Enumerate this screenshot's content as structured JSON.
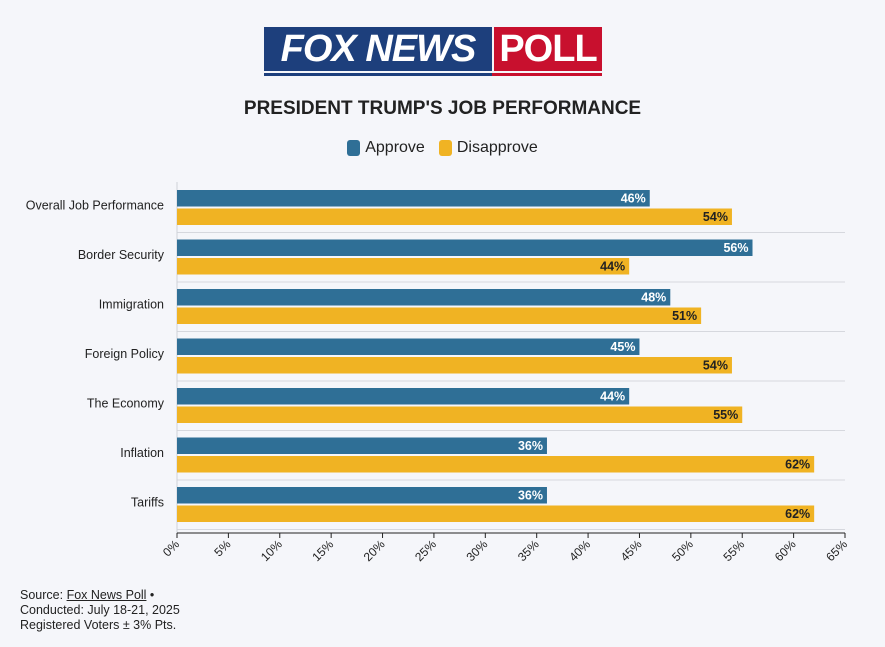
{
  "logo": {
    "left": "FOX NEWS",
    "right": "POLL"
  },
  "chart_data": {
    "type": "bar",
    "orientation": "horizontal",
    "title": "PRESIDENT TRUMP'S JOB PERFORMANCE",
    "categories": [
      "Overall Job Performance",
      "Border Security",
      "Immigration",
      "Foreign Policy",
      "The Economy",
      "Inflation",
      "Tariffs"
    ],
    "series": [
      {
        "name": "Approve",
        "color": "#2f6f96",
        "values": [
          46,
          56,
          48,
          45,
          44,
          36,
          36
        ]
      },
      {
        "name": "Disapprove",
        "color": "#f0b323",
        "values": [
          54,
          44,
          51,
          54,
          55,
          62,
          62
        ]
      }
    ],
    "xlim": [
      0,
      65
    ],
    "xticks": [
      0,
      5,
      10,
      15,
      20,
      25,
      30,
      35,
      40,
      45,
      50,
      55,
      60,
      65
    ],
    "tick_suffix": "%",
    "legend_position": "top-center",
    "grid": true
  },
  "source": {
    "prefix": "Source: ",
    "link": "Fox News Poll",
    "suffix": " •",
    "conducted": "Conducted: July 18-21, 2025",
    "voters": "Registered Voters ± 3% Pts."
  }
}
